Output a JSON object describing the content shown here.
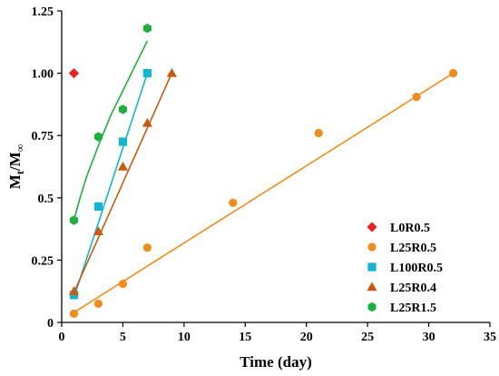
{
  "chart_data": {
    "type": "scatter",
    "xlabel": "Time (day)",
    "ylabel": "M",
    "ylabel_sub_t": "t",
    "ylabel_sep": "/M",
    "ylabel_sub_inf": "∞",
    "xlim": [
      0,
      35
    ],
    "ylim": [
      0,
      1.25
    ],
    "x_ticks": [
      0,
      5,
      10,
      15,
      20,
      25,
      30,
      35
    ],
    "y_ticks": [
      0,
      0.25,
      0.5,
      0.75,
      1.0,
      1.25
    ],
    "y_tick_labels": [
      "0",
      "0.25",
      "0.5",
      "0.75",
      "1.00",
      "1.25"
    ],
    "grid": false,
    "legend_position": "bottom-right",
    "series": [
      {
        "name": "L0R0.5",
        "color": "#e8231f",
        "marker": "diamond",
        "points": [
          [
            1,
            1.0
          ]
        ],
        "fit": null
      },
      {
        "name": "L25R0.5",
        "color": "#f08c1e",
        "marker": "circle",
        "points": [
          [
            1,
            0.035
          ],
          [
            3,
            0.075
          ],
          [
            5,
            0.155
          ],
          [
            7,
            0.3
          ],
          [
            14,
            0.48
          ],
          [
            21,
            0.76
          ],
          [
            29,
            0.905
          ],
          [
            32,
            1.0
          ]
        ],
        "fit": [
          [
            1,
            0.04
          ],
          [
            32,
            1.0
          ]
        ]
      },
      {
        "name": "L100R0.5",
        "color": "#14b4d2",
        "marker": "square",
        "points": [
          [
            1,
            0.11
          ],
          [
            3,
            0.465
          ],
          [
            5,
            0.725
          ],
          [
            7,
            1.0
          ]
        ],
        "fit": [
          [
            1,
            0.1
          ],
          [
            7,
            1.0
          ]
        ]
      },
      {
        "name": "L25R0.4",
        "color": "#c85a12",
        "marker": "triangle",
        "points": [
          [
            1,
            0.125
          ],
          [
            3,
            0.365
          ],
          [
            5,
            0.625
          ],
          [
            7,
            0.8
          ],
          [
            9,
            1.0
          ]
        ],
        "fit": [
          [
            1,
            0.12
          ],
          [
            9,
            1.0
          ]
        ]
      },
      {
        "name": "L25R1.5",
        "color": "#1eaf3c",
        "marker": "hexagon",
        "points": [
          [
            1,
            0.41
          ],
          [
            3,
            0.745
          ],
          [
            5,
            0.855
          ],
          [
            7,
            1.18
          ]
        ],
        "fit": [
          [
            1,
            0.41
          ],
          [
            1.5,
            0.5
          ],
          [
            2,
            0.58
          ],
          [
            3,
            0.71
          ],
          [
            4,
            0.83
          ],
          [
            5,
            0.93
          ],
          [
            6,
            1.03
          ],
          [
            7,
            1.13
          ]
        ]
      }
    ]
  }
}
